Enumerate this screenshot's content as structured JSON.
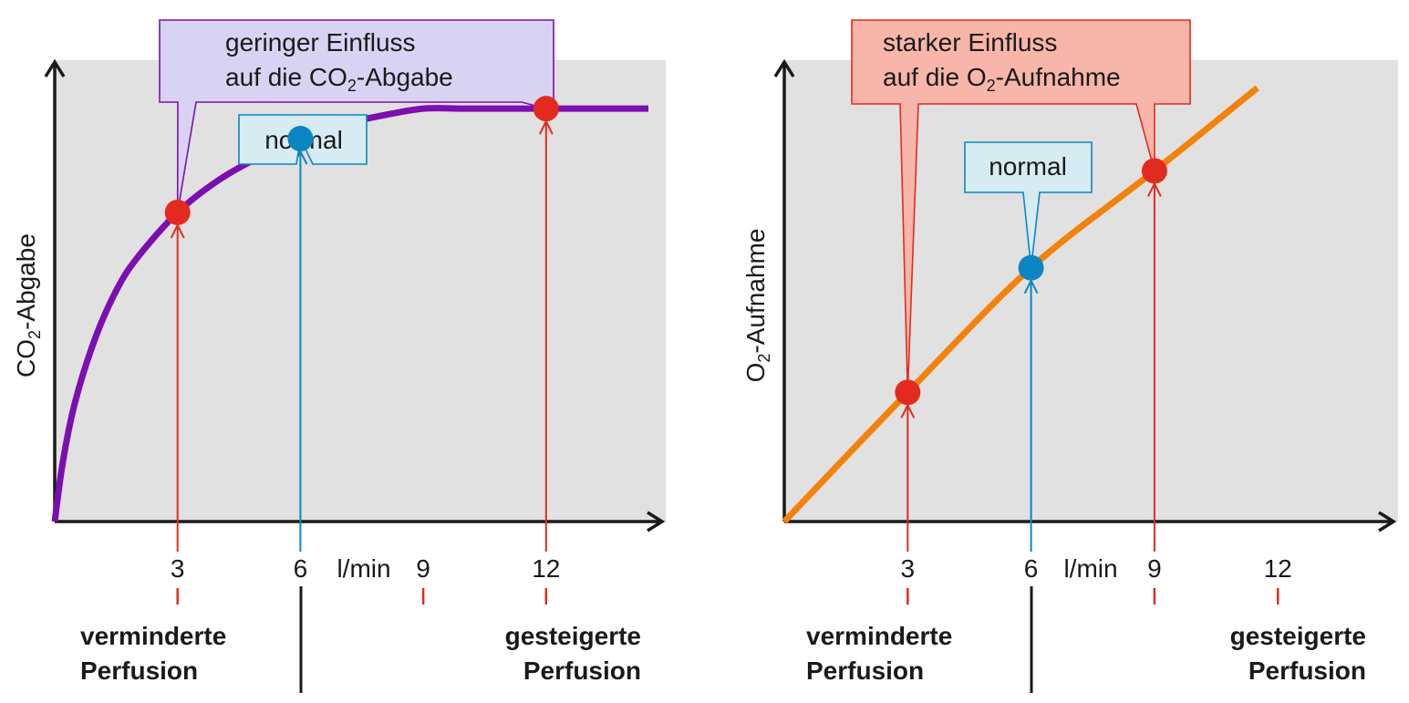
{
  "colors": {
    "plot_bg": "#e1e1e1",
    "axis": "#1a1a1a",
    "co2_curve": "#7b0fb0",
    "o2_curve": "#f2820c",
    "red_marker": "#e22b1e",
    "blue_marker": "#0c86c3",
    "callout_co2_fill": "#d9d3f3",
    "callout_co2_stroke": "#7b0fb0",
    "callout_o2_fill": "#f8b5a9",
    "callout_o2_stroke": "#e22b1e",
    "callout_normal_fill": "#d6ecf2",
    "callout_normal_stroke": "#0c86c3"
  },
  "unit_label": "l/min",
  "chart_data": [
    {
      "type": "line",
      "ylabel_main": "CO",
      "ylabel_sub": "2",
      "ylabel_rest": "-Abgabe",
      "xlabel": "l/min",
      "x_ticks": [
        3,
        6,
        9,
        12
      ],
      "xlim": [
        0,
        15
      ],
      "ylim": [
        0,
        1
      ],
      "series": [
        {
          "x": [
            0,
            0.2,
            0.5,
            1,
            1.5,
            2,
            3,
            4,
            5,
            6,
            7,
            8,
            9,
            10,
            11,
            12,
            13,
            14.5
          ],
          "y": [
            0,
            0.13,
            0.26,
            0.4,
            0.5,
            0.57,
            0.67,
            0.74,
            0.79,
            0.83,
            0.86,
            0.88,
            0.895,
            0.895,
            0.895,
            0.895,
            0.895,
            0.895
          ]
        }
      ],
      "points": [
        {
          "x": 3,
          "y": 0.67,
          "kind": "red"
        },
        {
          "x": 6,
          "y": 0.83,
          "kind": "blue"
        },
        {
          "x": 12,
          "y": 0.895,
          "kind": "red"
        }
      ],
      "main_callout": {
        "line1": "geringer Einfluss",
        "line2_pre": "auf die CO",
        "line2_sub": "2",
        "line2_post": "-Abgabe"
      },
      "normal_callout": "normal",
      "left_label": [
        "verminderte",
        "Perfusion"
      ],
      "right_label": [
        "gesteigerte",
        "Perfusion"
      ]
    },
    {
      "type": "line",
      "ylabel_main": "O",
      "ylabel_sub": "2",
      "ylabel_rest": "-Aufnahme",
      "xlabel": "l/min",
      "x_ticks": [
        3,
        6,
        9,
        12
      ],
      "xlim": [
        0,
        15
      ],
      "ylim": [
        0,
        1
      ],
      "series": [
        {
          "x": [
            0,
            3,
            6,
            9,
            11.5
          ],
          "y": [
            0,
            0.28,
            0.55,
            0.76,
            0.94
          ]
        }
      ],
      "points": [
        {
          "x": 3,
          "y": 0.28,
          "kind": "red"
        },
        {
          "x": 6,
          "y": 0.55,
          "kind": "blue"
        },
        {
          "x": 9,
          "y": 0.76,
          "kind": "red"
        }
      ],
      "main_callout": {
        "line1": "starker Einfluss",
        "line2_pre": "auf die O",
        "line2_sub": "2",
        "line2_post": "-Aufnahme"
      },
      "normal_callout": "normal",
      "left_label": [
        "verminderte",
        "Perfusion"
      ],
      "right_label": [
        "gesteigerte",
        "Perfusion"
      ]
    }
  ]
}
